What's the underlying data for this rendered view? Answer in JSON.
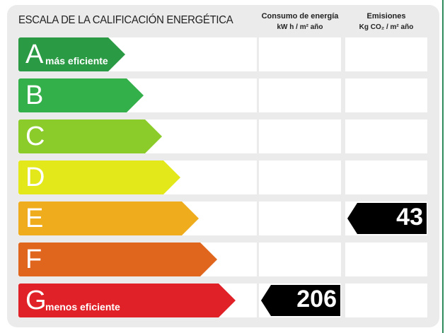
{
  "title": "ESCALA DE LA CALIFICACIÓN ENERGÉTICA",
  "columns": {
    "consumo": {
      "label": "Consumo de energía",
      "unit": "kW h / m² año"
    },
    "emisiones": {
      "label": "Emisiones",
      "unit": "Kg CO₂ / m² año"
    }
  },
  "ratings": [
    {
      "letter": "A",
      "tag": "más eficiente",
      "color": "#2a9a44"
    },
    {
      "letter": "B",
      "tag": "",
      "color": "#33b04a"
    },
    {
      "letter": "C",
      "tag": "",
      "color": "#8ccc2a"
    },
    {
      "letter": "D",
      "tag": "",
      "color": "#e3e81a"
    },
    {
      "letter": "E",
      "tag": "",
      "color": "#efac1c"
    },
    {
      "letter": "F",
      "tag": "",
      "color": "#e0661e"
    },
    {
      "letter": "G",
      "tag": "menos eficiente",
      "color": "#e02127"
    }
  ],
  "values": {
    "consumo": {
      "rating": "G",
      "value": "206"
    },
    "emisiones": {
      "rating": "E",
      "value": "43"
    }
  }
}
